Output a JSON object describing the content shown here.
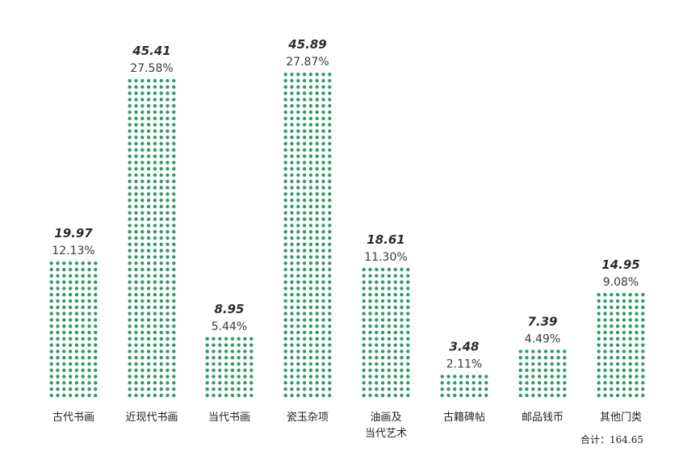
{
  "chart_data": {
    "type": "bar",
    "categories": [
      [
        "古代书画"
      ],
      [
        "近现代书画"
      ],
      [
        "当代书画"
      ],
      [
        "瓷玉杂项"
      ],
      [
        "油画及",
        "当代艺术"
      ],
      [
        "古籍碑帖"
      ],
      [
        "邮品钱币"
      ],
      [
        "其他门类"
      ]
    ],
    "values": [
      19.97,
      45.41,
      8.95,
      45.89,
      18.61,
      3.48,
      7.39,
      14.95
    ],
    "value_labels": [
      "19.97",
      "45.41",
      "8.95",
      "45.89",
      "18.61",
      "3.48",
      "7.39",
      "14.95"
    ],
    "percent_labels": [
      "12.13%",
      "27.58%",
      "5.44%",
      "27.87%",
      "11.30%",
      "2.11%",
      "4.49%",
      "9.08%"
    ],
    "total_label": "合计：164.65",
    "ylim": [
      0,
      46
    ],
    "grid": false,
    "dot_color": "#2e9a6a"
  }
}
